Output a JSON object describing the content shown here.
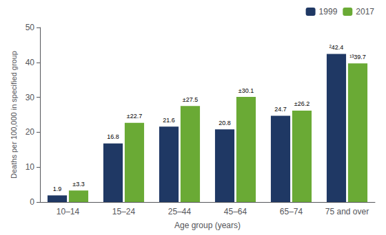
{
  "chart_data": {
    "type": "bar",
    "categories": [
      "10–14",
      "15–24",
      "25–44",
      "45–64",
      "65–74",
      "75 and over"
    ],
    "series": [
      {
        "name": "1999",
        "color": "#1f3864",
        "values": [
          1.9,
          16.8,
          21.6,
          20.8,
          24.7,
          42.4
        ],
        "value_labels": [
          "1.9",
          "16.8",
          "21.6",
          "20.8",
          "24.7",
          "²42.4"
        ]
      },
      {
        "name": "2017",
        "color": "#6aaa35",
        "values": [
          3.3,
          22.7,
          27.5,
          30.1,
          26.2,
          39.7
        ],
        "value_labels": [
          "±3.3",
          "±22.7",
          "±27.5",
          "±30.1",
          "±26.2",
          "¹³39.7"
        ]
      }
    ],
    "xlabel": "Age group (years)",
    "ylabel": "Deaths per 100,000 in specified group",
    "ylim": [
      0,
      50
    ],
    "yticks": [
      0,
      10,
      20,
      30,
      40,
      50
    ],
    "grid": false,
    "legend": "upper right",
    "data_labels": true
  }
}
